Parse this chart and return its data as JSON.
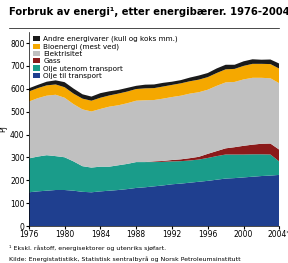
{
  "title": "Forbruk av energi¹, etter energibærer. 1976-2004*",
  "ylabel": "PJ",
  "footnote1": "¹ Ekskl. råstoff, energisektorer og utenriks sjøfart.",
  "footnote2": "Kilde: Energistatistikk, Statistisk sentralbyrå og Norsk Petroleumsinstitutt",
  "years": [
    1976,
    1977,
    1978,
    1979,
    1980,
    1981,
    1982,
    1983,
    1984,
    1985,
    1986,
    1987,
    1988,
    1989,
    1990,
    1991,
    1992,
    1993,
    1994,
    1995,
    1996,
    1997,
    1998,
    1999,
    2000,
    2001,
    2002,
    2003,
    2004
  ],
  "series": {
    "Olje til transport": [
      148,
      152,
      155,
      158,
      158,
      155,
      150,
      148,
      152,
      155,
      158,
      162,
      167,
      170,
      174,
      178,
      183,
      186,
      190,
      194,
      198,
      203,
      208,
      210,
      213,
      216,
      219,
      221,
      224
    ],
    "Olje utenom transport": [
      148,
      152,
      155,
      148,
      143,
      128,
      112,
      108,
      108,
      105,
      108,
      110,
      113,
      110,
      106,
      103,
      100,
      98,
      97,
      97,
      100,
      103,
      105,
      103,
      100,
      98,
      95,
      92,
      58
    ],
    "Gass": [
      0,
      0,
      0,
      0,
      0,
      0,
      0,
      0,
      0,
      0,
      0,
      0,
      0,
      0,
      3,
      4,
      6,
      8,
      10,
      12,
      18,
      22,
      27,
      32,
      38,
      42,
      46,
      48,
      52
    ],
    "Elektrisitet": [
      248,
      255,
      260,
      268,
      260,
      250,
      248,
      245,
      252,
      262,
      262,
      265,
      268,
      270,
      268,
      272,
      275,
      278,
      282,
      282,
      280,
      285,
      288,
      285,
      290,
      292,
      288,
      285,
      290
    ],
    "Bioenergi (mest ved)": [
      44,
      44,
      45,
      45,
      46,
      46,
      47,
      47,
      49,
      49,
      51,
      51,
      51,
      52,
      52,
      53,
      53,
      54,
      54,
      55,
      55,
      56,
      57,
      57,
      59,
      61,
      61,
      62,
      64
    ],
    "Andre energivarer (kull og koks mm.)": [
      14,
      14,
      16,
      18,
      22,
      22,
      19,
      18,
      20,
      18,
      16,
      16,
      14,
      16,
      16,
      16,
      14,
      14,
      16,
      18,
      18,
      20,
      20,
      18,
      20,
      20,
      18,
      20,
      22
    ]
  },
  "colors": {
    "Olje til transport": "#1f3f8f",
    "Olje utenom transport": "#1a9c8a",
    "Gass": "#8b1a1a",
    "Elektrisitet": "#c0c0c0",
    "Bioenergi (mest ved)": "#f5a800",
    "Andre energivarer (kull og koks mm.)": "#1a1a1a"
  },
  "ylim": [
    0,
    850
  ],
  "yticks": [
    0,
    100,
    200,
    300,
    400,
    500,
    600,
    700,
    800
  ],
  "xticks": [
    1976,
    1980,
    1984,
    1988,
    1992,
    1996,
    2000,
    2004
  ],
  "xtick_labels": [
    "1976",
    "1980",
    "1984",
    "1988",
    "1992",
    "1996",
    "2000",
    "2004*"
  ],
  "background_color": "#ffffff",
  "title_fontsize": 7.2,
  "legend_fontsize": 5.2,
  "axis_fontsize": 5.5,
  "tick_fontsize": 5.5
}
